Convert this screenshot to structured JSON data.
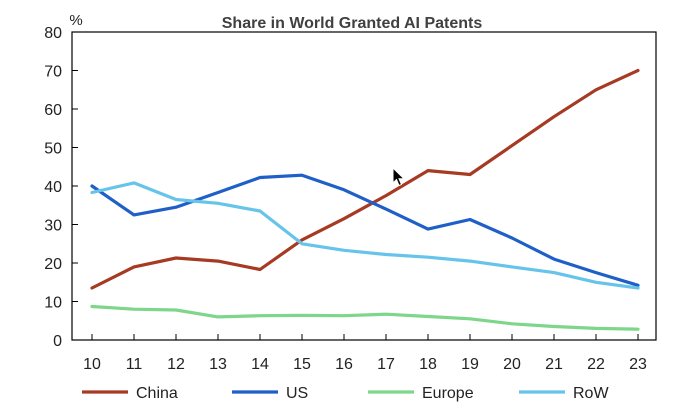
{
  "chart_data": {
    "type": "line",
    "title": "Share in World Granted AI Patents",
    "ylabel": "%",
    "xlabel": "",
    "x": [
      "10",
      "11",
      "12",
      "13",
      "14",
      "15",
      "16",
      "17",
      "18",
      "19",
      "20",
      "21",
      "22",
      "23"
    ],
    "ylim": [
      0,
      80
    ],
    "yticks": [
      0,
      10,
      20,
      30,
      40,
      50,
      60,
      70,
      80
    ],
    "grid": false,
    "legend_position": "bottom",
    "series": [
      {
        "name": "China",
        "color": "#A63A22",
        "values": [
          13.5,
          19,
          21.3,
          20.5,
          18.3,
          26,
          31.5,
          37.5,
          44,
          43,
          50.5,
          58,
          65,
          70
        ]
      },
      {
        "name": "US",
        "color": "#1F5FC8",
        "values": [
          40,
          32.5,
          34.5,
          38.3,
          42.2,
          42.8,
          39,
          34,
          28.8,
          31.3,
          26.5,
          21,
          17.5,
          14.2
        ]
      },
      {
        "name": "Europe",
        "color": "#7DD68A",
        "values": [
          8.7,
          8,
          7.8,
          6,
          6.3,
          6.4,
          6.3,
          6.7,
          6.1,
          5.5,
          4.2,
          3.5,
          3,
          2.8
        ]
      },
      {
        "name": "RoW",
        "color": "#66C4EA",
        "values": [
          38.3,
          40.8,
          36.5,
          35.5,
          33.5,
          25,
          23.3,
          22.2,
          21.5,
          20.5,
          19,
          17.5,
          15,
          13.5
        ]
      }
    ]
  }
}
